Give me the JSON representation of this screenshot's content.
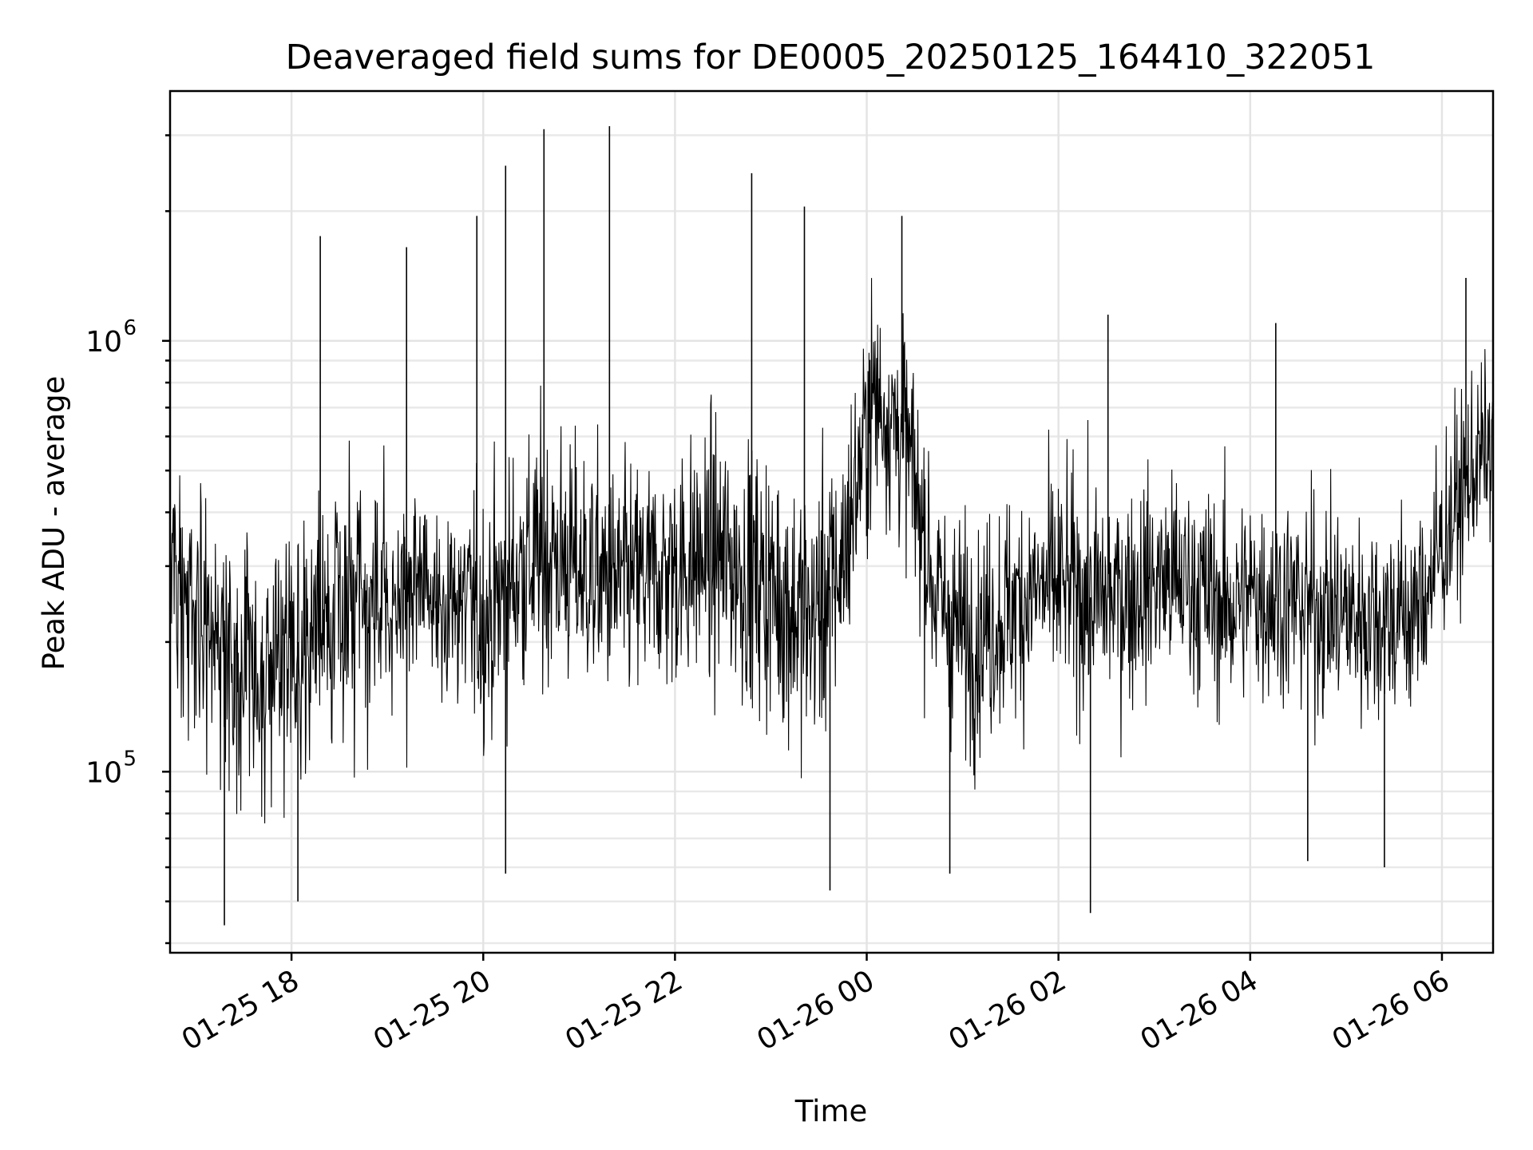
{
  "chart_data": {
    "type": "line",
    "title": "Deaveraged field sums for DE0005_20250125_164410_322051",
    "xlabel": "Time",
    "ylabel": "Peak ADU - average",
    "yscale": "log",
    "xlim": [
      "2025-01-25 16:44",
      "2025-01-26 06:32"
    ],
    "ylim": [
      38000,
      3800000
    ],
    "xticks": [
      {
        "value": "2025-01-25 18:00",
        "label": "01-25 18"
      },
      {
        "value": "2025-01-25 20:00",
        "label": "01-25 20"
      },
      {
        "value": "2025-01-25 22:00",
        "label": "01-25 22"
      },
      {
        "value": "2025-01-26 00:00",
        "label": "01-26 00"
      },
      {
        "value": "2025-01-26 02:00",
        "label": "01-26 02"
      },
      {
        "value": "2025-01-26 04:00",
        "label": "01-26 04"
      },
      {
        "value": "2025-01-26 06:00",
        "label": "01-26 06"
      }
    ],
    "yticks": [
      {
        "value": 100000,
        "base": "10",
        "exp": "5"
      },
      {
        "value": 1000000,
        "base": "10",
        "exp": "6"
      }
    ],
    "grid": true,
    "line_color": "#000000",
    "series": [
      {
        "x": [
          "2025-01-25 16:44",
          "2025-01-25 17:04",
          "2025-01-25 17:24",
          "2025-01-25 17:44",
          "2025-01-25 18:04",
          "2025-01-25 18:24",
          "2025-01-25 18:44",
          "2025-01-25 19:04",
          "2025-01-25 19:24",
          "2025-01-25 19:44",
          "2025-01-25 20:04",
          "2025-01-25 20:24",
          "2025-01-25 20:44",
          "2025-01-25 21:04",
          "2025-01-25 21:24",
          "2025-01-25 21:44",
          "2025-01-25 22:04",
          "2025-01-25 22:24",
          "2025-01-25 22:44",
          "2025-01-25 23:04",
          "2025-01-25 23:24",
          "2025-01-25 23:44",
          "2025-01-26 00:04",
          "2025-01-26 00:24",
          "2025-01-26 00:44",
          "2025-01-26 01:04",
          "2025-01-26 01:24",
          "2025-01-26 01:44",
          "2025-01-26 02:04",
          "2025-01-26 02:24",
          "2025-01-26 02:44",
          "2025-01-26 03:04",
          "2025-01-26 03:24",
          "2025-01-26 03:44",
          "2025-01-26 04:04",
          "2025-01-26 04:24",
          "2025-01-26 04:44",
          "2025-01-26 05:04",
          "2025-01-26 05:24",
          "2025-01-26 05:44",
          "2025-01-26 06:04",
          "2025-01-26 06:24"
        ],
        "y": [
          300000,
          220000,
          180000,
          170000,
          200000,
          240000,
          230000,
          250000,
          270000,
          240000,
          230000,
          300000,
          320000,
          290000,
          270000,
          280000,
          300000,
          320000,
          290000,
          260000,
          220000,
          300000,
          750000,
          600000,
          250000,
          200000,
          230000,
          260000,
          270000,
          250000,
          260000,
          280000,
          270000,
          240000,
          260000,
          250000,
          240000,
          230000,
          230000,
          230000,
          370000,
          550000
        ],
        "spread": [
          0.42,
          0.45,
          0.45,
          0.43,
          0.45,
          0.42,
          0.43,
          0.42,
          0.4,
          0.42,
          0.43,
          0.45,
          0.45,
          0.43,
          0.42,
          0.42,
          0.43,
          0.45,
          0.45,
          0.48,
          0.5,
          0.45,
          0.38,
          0.4,
          0.42,
          0.4,
          0.4,
          0.4,
          0.4,
          0.4,
          0.38,
          0.38,
          0.38,
          0.38,
          0.38,
          0.38,
          0.38,
          0.38,
          0.38,
          0.38,
          0.36,
          0.3
        ],
        "peaks": [
          {
            "x": "2025-01-25 18:18",
            "y": 1750000
          },
          {
            "x": "2025-01-25 19:12",
            "y": 1650000
          },
          {
            "x": "2025-01-25 19:56",
            "y": 1950000
          },
          {
            "x": "2025-01-25 20:14",
            "y": 2550000
          },
          {
            "x": "2025-01-25 20:38",
            "y": 3100000
          },
          {
            "x": "2025-01-25 21:19",
            "y": 3150000
          },
          {
            "x": "2025-01-25 22:48",
            "y": 2450000
          },
          {
            "x": "2025-01-25 23:21",
            "y": 2050000
          },
          {
            "x": "2025-01-26 00:22",
            "y": 1950000
          },
          {
            "x": "2025-01-26 02:31",
            "y": 1150000
          },
          {
            "x": "2025-01-26 04:16",
            "y": 1100000
          },
          {
            "x": "2025-01-26 06:15",
            "y": 1400000
          }
        ],
        "dips": [
          {
            "x": "2025-01-25 17:18",
            "y": 44000
          },
          {
            "x": "2025-01-25 18:04",
            "y": 50000
          },
          {
            "x": "2025-01-25 20:14",
            "y": 58000
          },
          {
            "x": "2025-01-25 23:37",
            "y": 53000
          },
          {
            "x": "2025-01-26 00:52",
            "y": 58000
          },
          {
            "x": "2025-01-26 02:20",
            "y": 47000
          },
          {
            "x": "2025-01-26 04:36",
            "y": 62000
          },
          {
            "x": "2025-01-26 05:24",
            "y": 60000
          }
        ]
      }
    ]
  }
}
